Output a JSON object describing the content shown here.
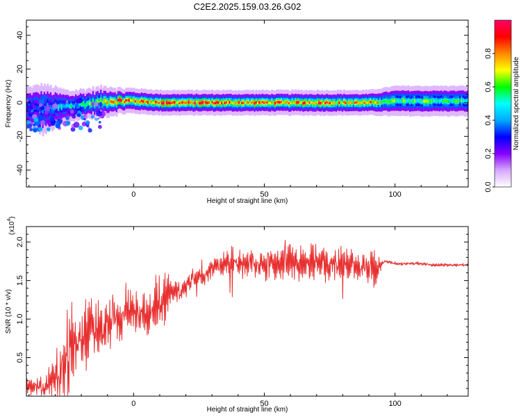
{
  "title": "C2E2.2025.159.03.26.G02",
  "chart_data": [
    {
      "type": "heatmap",
      "xlabel": "Height of straight line (km)",
      "ylabel": "Frequency (Hz)",
      "xlim": [
        -41,
        128
      ],
      "ylim": [
        -50,
        49
      ],
      "x_ticks": [
        0,
        50,
        100
      ],
      "y_ticks": [
        -40,
        -20,
        0,
        20,
        40
      ],
      "grid": false,
      "colorbar": {
        "label": "Normalized spectral amplitude",
        "range": [
          0,
          1
        ],
        "ticks": [
          0.0,
          0.2,
          0.4,
          0.6,
          0.8
        ],
        "colors": [
          "#ffffff",
          "#d7a8ff",
          "#8800ff",
          "#0000ff",
          "#00aaff",
          "#00ffff",
          "#00ff00",
          "#ffff00",
          "#ff8800",
          "#ff0000",
          "#ff0066"
        ]
      },
      "ridge": {
        "description_units": "frequency center (Hz) vs height (km)",
        "x": [
          -41,
          -35,
          -30,
          -25,
          -20,
          -15,
          -10,
          -5,
          0,
          10,
          20,
          30,
          40,
          50,
          60,
          70,
          80,
          90,
          100,
          110,
          120,
          128
        ],
        "center": [
          -3,
          -4,
          -3,
          -2,
          -1,
          0,
          1,
          1,
          1,
          0,
          0,
          0,
          0,
          0,
          0,
          0,
          0,
          0,
          1,
          1,
          1,
          1
        ],
        "half_width": [
          4,
          5,
          4,
          3,
          3,
          3,
          3,
          2.5,
          2.5,
          2.5,
          2.5,
          2.5,
          2.5,
          2.5,
          2.5,
          2.5,
          2.5,
          2.5,
          3,
          3,
          3,
          3
        ],
        "amplitude": [
          0.35,
          0.4,
          0.45,
          0.5,
          0.55,
          0.6,
          0.7,
          0.85,
          0.8,
          0.85,
          0.85,
          0.8,
          0.8,
          0.8,
          0.8,
          0.85,
          0.75,
          0.75,
          0.6,
          0.6,
          0.55,
          0.55
        ]
      }
    },
    {
      "type": "line",
      "xlabel": "Height of straight line (km)",
      "ylabel": "SNR (10 * v/v)",
      "y_multiplier": "(x10",
      "y_multiplier_exp": "4",
      "xlim": [
        -41,
        128
      ],
      "ylim": [
        0,
        2.2
      ],
      "x_ticks": [
        0,
        50,
        100
      ],
      "y_ticks": [
        0.5,
        1.0,
        1.5,
        2.0
      ],
      "y_tick_labels": [
        "0.5",
        "1.0",
        "1.5",
        "2.0"
      ],
      "grid": false,
      "series": [
        {
          "color": "#e83030",
          "x": [
            -41,
            -38,
            -35,
            -32,
            -30,
            -28,
            -26,
            -24,
            -22,
            -20,
            -18,
            -16,
            -14,
            -12,
            -10,
            -8,
            -6,
            -4,
            -2,
            0,
            2,
            4,
            6,
            8,
            10,
            12,
            14,
            16,
            18,
            20,
            22,
            24,
            26,
            28,
            30,
            32,
            34,
            36,
            38,
            40,
            45,
            50,
            55,
            60,
            65,
            70,
            75,
            80,
            85,
            90,
            93,
            96,
            100,
            105,
            110,
            115,
            120,
            125,
            128
          ],
          "trend": [
            0.12,
            0.15,
            0.1,
            0.2,
            0.25,
            0.35,
            0.45,
            0.6,
            0.7,
            0.65,
            0.75,
            0.8,
            0.8,
            0.9,
            0.9,
            0.95,
            1.05,
            1.1,
            1.15,
            1.05,
            1.1,
            1.1,
            1.05,
            1.15,
            1.2,
            1.25,
            1.3,
            1.35,
            1.35,
            1.45,
            1.5,
            1.55,
            1.55,
            1.6,
            1.65,
            1.7,
            1.72,
            1.72,
            1.75,
            1.72,
            1.72,
            1.7,
            1.72,
            1.75,
            1.72,
            1.75,
            1.72,
            1.72,
            1.7,
            1.68,
            1.65,
            1.75,
            1.72,
            1.72,
            1.72,
            1.7,
            1.7,
            1.7,
            1.7
          ],
          "noise": [
            0.12,
            0.1,
            0.12,
            0.18,
            0.3,
            0.45,
            0.55,
            0.55,
            0.5,
            0.45,
            0.5,
            0.45,
            0.4,
            0.35,
            0.4,
            0.35,
            0.3,
            0.3,
            0.35,
            0.25,
            0.25,
            0.3,
            0.3,
            0.35,
            0.4,
            0.35,
            0.2,
            0.18,
            0.15,
            0.15,
            0.12,
            0.12,
            0.12,
            0.12,
            0.12,
            0.14,
            0.14,
            0.14,
            0.18,
            0.15,
            0.18,
            0.16,
            0.2,
            0.2,
            0.22,
            0.22,
            0.22,
            0.2,
            0.18,
            0.25,
            0.2,
            0.02,
            0.02,
            0.02,
            0.02,
            0.02,
            0.02,
            0.02,
            0.02
          ]
        }
      ]
    }
  ]
}
